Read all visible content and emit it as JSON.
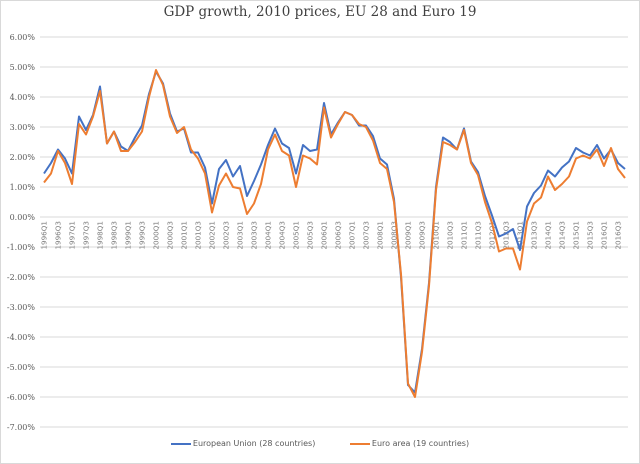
{
  "chart_data": {
    "type": "line",
    "title": "GDP growth, 2010 prices, EU 28 and Euro 19",
    "xlabel": "",
    "ylabel": "",
    "ylim": [
      -7,
      6
    ],
    "yticks": [
      6,
      5,
      4,
      3,
      2,
      1,
      0,
      -1,
      -2,
      -3,
      -4,
      -5,
      -6,
      -7
    ],
    "ytick_labels": [
      "6.00%",
      "5.00%",
      "4.00%",
      "3.00%",
      "2.00%",
      "1.00%",
      "0.00%",
      "-1.00%",
      "-2.00%",
      "-3.00%",
      "-4.00%",
      "-5.00%",
      "-6.00%",
      "-7.00%"
    ],
    "grid": true,
    "legend_position": "bottom",
    "x": [
      "1996Q1",
      "1996Q2",
      "1996Q3",
      "1996Q4",
      "1997Q1",
      "1997Q2",
      "1997Q3",
      "1997Q4",
      "1998Q1",
      "1998Q2",
      "1998Q3",
      "1998Q4",
      "1999Q1",
      "1999Q2",
      "1999Q3",
      "1999Q4",
      "2000Q1",
      "2000Q2",
      "2000Q3",
      "2000Q4",
      "2001Q1",
      "2001Q2",
      "2001Q3",
      "2001Q4",
      "2002Q1",
      "2002Q2",
      "2002Q3",
      "2002Q4",
      "2003Q1",
      "2003Q2",
      "2003Q3",
      "2003Q4",
      "2004Q1",
      "2004Q2",
      "2004Q3",
      "2004Q4",
      "2005Q1",
      "2005Q2",
      "2005Q3",
      "2005Q4",
      "2006Q1",
      "2006Q2",
      "2006Q3",
      "2006Q4",
      "2007Q1",
      "2007Q2",
      "2007Q3",
      "2007Q4",
      "2008Q1",
      "2008Q2",
      "2008Q3",
      "2008Q4",
      "2009Q1",
      "2009Q2",
      "2009Q3",
      "2009Q4",
      "2010Q1",
      "2010Q2",
      "2010Q3",
      "2010Q4",
      "2011Q1",
      "2011Q2",
      "2011Q3",
      "2011Q4",
      "2012Q1",
      "2012Q2",
      "2012Q3",
      "2012Q4",
      "2013Q1",
      "2013Q2",
      "2013Q3",
      "2013Q4",
      "2014Q1",
      "2014Q2",
      "2014Q3",
      "2014Q4",
      "2015Q1",
      "2015Q2",
      "2015Q3",
      "2015Q4",
      "2016Q1",
      "2016Q2",
      "2016Q3",
      "2016Q4"
    ],
    "xtick_labels": [
      "1996Q1",
      "1996Q3",
      "1997Q1",
      "1997Q3",
      "1998Q1",
      "1998Q3",
      "1999Q1",
      "1999Q3",
      "2000Q1",
      "2000Q3",
      "2001Q1",
      "2001Q3",
      "2002Q1",
      "2002Q3",
      "2003Q1",
      "2003Q3",
      "2004Q1",
      "2004Q3",
      "2005Q1",
      "2005Q3",
      "2006Q1",
      "2006Q3",
      "2007Q1",
      "2007Q3",
      "2008Q1",
      "2008Q3",
      "2009Q1",
      "2009Q3",
      "2010Q1",
      "2010Q3",
      "2011Q1",
      "2011Q3",
      "2012Q1",
      "2012Q3",
      "2013Q1",
      "2013Q3",
      "2014Q1",
      "2014Q3",
      "2015Q1",
      "2015Q3",
      "2016Q1",
      "2016Q3"
    ],
    "series": [
      {
        "name": "European Union (28 countries)",
        "color": "#4472c4",
        "values": [
          1.45,
          1.8,
          2.25,
          1.95,
          1.45,
          3.35,
          2.9,
          3.4,
          4.35,
          2.45,
          2.85,
          2.35,
          2.2,
          2.65,
          3.05,
          4.1,
          4.85,
          4.45,
          3.45,
          2.85,
          2.95,
          2.15,
          2.15,
          1.65,
          0.45,
          1.6,
          1.9,
          1.35,
          1.7,
          0.7,
          1.2,
          1.75,
          2.4,
          2.95,
          2.45,
          2.3,
          1.45,
          2.4,
          2.2,
          2.25,
          3.8,
          2.75,
          3.15,
          3.5,
          3.4,
          3.05,
          3.05,
          2.7,
          1.95,
          1.75,
          0.6,
          -2.0,
          -5.6,
          -5.85,
          -4.4,
          -2.2,
          1.0,
          2.65,
          2.5,
          2.25,
          2.95,
          1.85,
          1.5,
          0.7,
          0.05,
          -0.65,
          -0.55,
          -0.4,
          -1.1,
          0.35,
          0.8,
          1.05,
          1.55,
          1.35,
          1.65,
          1.85,
          2.3,
          2.15,
          2.05,
          2.4,
          1.95,
          2.25,
          1.8,
          1.6
        ]
      },
      {
        "name": "Euro area (19 countries)",
        "color": "#ed7d31",
        "values": [
          1.15,
          1.45,
          2.2,
          1.8,
          1.1,
          3.1,
          2.75,
          3.35,
          4.2,
          2.45,
          2.85,
          2.2,
          2.2,
          2.5,
          2.85,
          4.0,
          4.9,
          4.4,
          3.35,
          2.8,
          3.0,
          2.25,
          1.95,
          1.45,
          0.15,
          1.05,
          1.45,
          1.0,
          0.95,
          0.1,
          0.45,
          1.1,
          2.25,
          2.75,
          2.2,
          2.05,
          1.0,
          2.05,
          1.95,
          1.75,
          3.65,
          2.65,
          3.1,
          3.5,
          3.4,
          3.1,
          3.0,
          2.55,
          1.8,
          1.6,
          0.5,
          -1.9,
          -5.55,
          -6.0,
          -4.5,
          -2.3,
          0.9,
          2.5,
          2.4,
          2.25,
          2.9,
          1.8,
          1.4,
          0.5,
          -0.2,
          -1.15,
          -1.05,
          -1.05,
          -1.75,
          -0.15,
          0.45,
          0.65,
          1.35,
          0.9,
          1.1,
          1.35,
          1.95,
          2.05,
          1.95,
          2.25,
          1.7,
          2.3,
          1.6,
          1.3
        ]
      }
    ]
  }
}
